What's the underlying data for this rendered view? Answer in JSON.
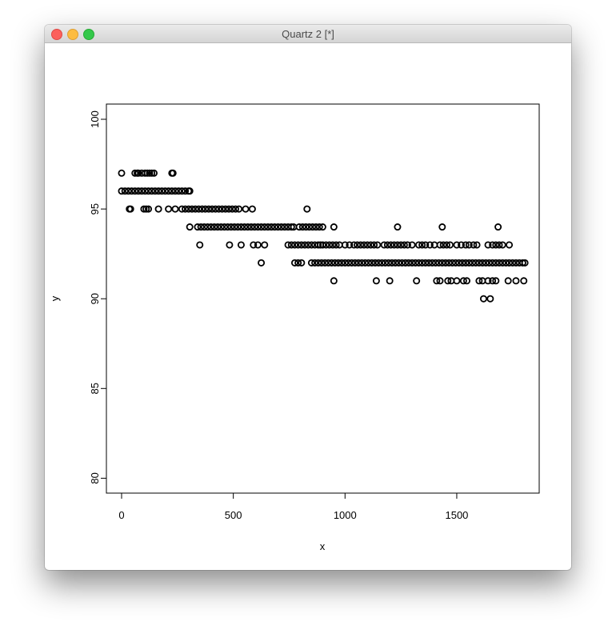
{
  "window": {
    "title": "Quartz 2 [*]"
  },
  "chart_data": {
    "type": "scatter",
    "xlabel": "x",
    "ylabel": "y",
    "xlim": [
      -70,
      1870
    ],
    "ylim": [
      79.2,
      100.8
    ],
    "xticks": [
      0,
      500,
      1000,
      1500
    ],
    "yticks": [
      80,
      85,
      90,
      95,
      100
    ],
    "marker": "open-circle",
    "grid": false,
    "color": "#000000",
    "points": {
      "97": [
        0,
        60,
        70,
        75,
        90,
        105,
        115,
        125,
        135,
        145,
        225,
        230
      ],
      "96": [
        0,
        15,
        30,
        45,
        60,
        75,
        90,
        105,
        120,
        135,
        150,
        165,
        180,
        195,
        210,
        225,
        240,
        255,
        270,
        285,
        300,
        305
      ],
      "95": [
        35,
        40,
        100,
        110,
        120,
        165,
        210,
        240,
        270,
        285,
        300,
        315,
        330,
        345,
        360,
        375,
        390,
        405,
        420,
        435,
        450,
        465,
        480,
        495,
        510,
        525,
        555,
        585,
        830
      ],
      "94": [
        305,
        340,
        355,
        370,
        385,
        400,
        415,
        430,
        445,
        460,
        475,
        490,
        505,
        520,
        535,
        550,
        565,
        580,
        595,
        610,
        625,
        640,
        655,
        670,
        685,
        700,
        715,
        730,
        745,
        760,
        770,
        795,
        810,
        825,
        840,
        855,
        870,
        885,
        900,
        950,
        1235,
        1435,
        1685
      ],
      "93": [
        350,
        483,
        535,
        590,
        610,
        640,
        745,
        760,
        775,
        790,
        805,
        820,
        835,
        850,
        865,
        880,
        890,
        900,
        915,
        930,
        945,
        960,
        975,
        1000,
        1020,
        1040,
        1055,
        1070,
        1085,
        1100,
        1115,
        1130,
        1145,
        1175,
        1190,
        1205,
        1220,
        1235,
        1250,
        1265,
        1280,
        1300,
        1330,
        1345,
        1360,
        1380,
        1400,
        1425,
        1440,
        1455,
        1470,
        1500,
        1520,
        1540,
        1555,
        1575,
        1590,
        1640,
        1660,
        1675,
        1690,
        1705,
        1735
      ],
      "92": [
        625,
        775,
        790,
        805,
        850,
        865,
        880,
        895,
        910,
        925,
        940,
        955,
        970,
        985,
        1000,
        1015,
        1030,
        1045,
        1060,
        1075,
        1090,
        1105,
        1120,
        1135,
        1150,
        1165,
        1180,
        1195,
        1210,
        1225,
        1240,
        1255,
        1270,
        1285,
        1300,
        1315,
        1330,
        1345,
        1360,
        1375,
        1390,
        1405,
        1420,
        1435,
        1450,
        1465,
        1480,
        1495,
        1510,
        1525,
        1540,
        1555,
        1570,
        1585,
        1600,
        1615,
        1630,
        1645,
        1660,
        1675,
        1690,
        1705,
        1720,
        1735,
        1750,
        1765,
        1780,
        1795,
        1805
      ],
      "91": [
        950,
        1140,
        1200,
        1320,
        1410,
        1425,
        1460,
        1475,
        1500,
        1530,
        1545,
        1600,
        1615,
        1640,
        1660,
        1675,
        1730,
        1765,
        1800
      ],
      "90": [
        1620,
        1650
      ]
    }
  }
}
